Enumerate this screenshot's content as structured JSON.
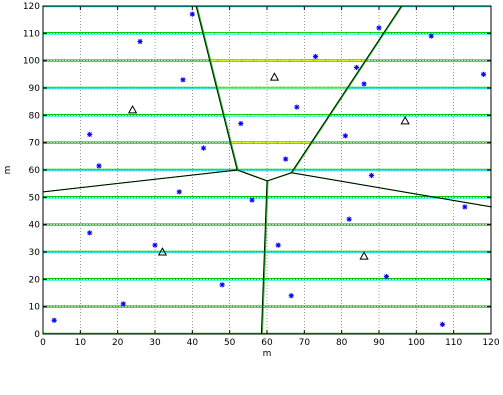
{
  "chart_data": {
    "type": "scatter",
    "xlabel": "m",
    "ylabel": "m",
    "xlim": [
      0,
      120
    ],
    "ylim": [
      0,
      120
    ],
    "x_ticks": [
      0,
      10,
      20,
      30,
      40,
      50,
      60,
      70,
      80,
      90,
      100,
      110,
      120
    ],
    "y_ticks": [
      0,
      10,
      20,
      30,
      40,
      50,
      60,
      70,
      80,
      90,
      100,
      110,
      120
    ],
    "grid": "dotted",
    "colors": {
      "stars": "#0000ff",
      "triangles": "#000000",
      "voronoi_edges": "#000000",
      "green_lines": "#00cc00",
      "cyan_lines": "#00e0e0",
      "yellow_lines": "#ffff00"
    },
    "stars": [
      [
        3,
        5
      ],
      [
        12.5,
        73
      ],
      [
        12.5,
        37
      ],
      [
        15,
        61.5
      ],
      [
        21.5,
        11
      ],
      [
        26,
        107
      ],
      [
        30,
        32.5
      ],
      [
        36.5,
        52
      ],
      [
        37.5,
        93
      ],
      [
        40,
        117
      ],
      [
        43,
        68
      ],
      [
        48,
        18
      ],
      [
        53,
        77
      ],
      [
        56,
        49
      ],
      [
        63,
        32.5
      ],
      [
        65,
        64
      ],
      [
        66.5,
        14
      ],
      [
        68,
        83
      ],
      [
        73,
        101.5
      ],
      [
        81,
        72.5
      ],
      [
        82,
        42
      ],
      [
        84,
        97.5
      ],
      [
        86,
        91.5
      ],
      [
        88,
        58
      ],
      [
        90,
        112
      ],
      [
        92,
        21
      ],
      [
        104,
        109
      ],
      [
        107,
        3.5
      ],
      [
        113,
        46.5
      ],
      [
        118,
        95
      ]
    ],
    "triangles": [
      [
        24,
        82
      ],
      [
        32,
        30
      ],
      [
        62,
        94
      ],
      [
        86,
        28.5
      ],
      [
        97,
        78
      ]
    ],
    "voronoi_vertices": [
      [
        52,
        60
      ],
      [
        60,
        56
      ],
      [
        66.5,
        59
      ]
    ],
    "voronoi_edges": [
      [
        [
          52,
          60
        ],
        [
          60,
          56
        ]
      ],
      [
        [
          60,
          56
        ],
        [
          66.5,
          59
        ]
      ],
      [
        [
          52,
          60
        ],
        [
          0,
          52
        ]
      ],
      [
        [
          52,
          60
        ],
        [
          41,
          120
        ]
      ],
      [
        [
          66.5,
          59
        ],
        [
          120,
          46.5
        ]
      ],
      [
        [
          66.5,
          59
        ],
        [
          96,
          120
        ]
      ],
      [
        [
          60,
          56
        ],
        [
          58.5,
          0
        ]
      ]
    ],
    "green_lines_y": [
      0,
      10,
      20,
      30,
      40,
      50,
      60,
      70,
      80,
      90,
      100,
      110
    ],
    "cyan_lines_y": [
      10,
      20,
      30,
      40,
      50,
      60,
      70,
      80,
      90,
      100,
      110,
      120
    ],
    "yellow_lines_y": [
      70,
      80,
      90,
      100,
      110
    ]
  }
}
